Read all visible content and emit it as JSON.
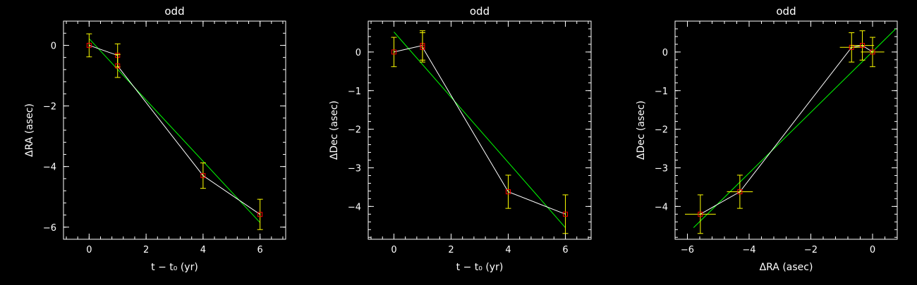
{
  "colors": {
    "background": "#000000",
    "axes": "#ffffff",
    "data_line": "#ffffff",
    "fit_line": "#00ff00",
    "error_bars": "#ffff00",
    "markers": "#ff0000"
  },
  "chart_data": [
    {
      "type": "scatter",
      "title": "odd",
      "xlabel": "t − t₀ (yr)",
      "ylabel": "ΔRA (asec)",
      "xlim": [
        -0.9,
        6.9
      ],
      "ylim": [
        -6.4,
        0.8
      ],
      "xticks": [
        0,
        2,
        4,
        6
      ],
      "yticks": [
        -6,
        -4,
        -2,
        0
      ],
      "xtick_labels": [
        "0",
        "2",
        "4",
        "6"
      ],
      "ytick_labels": [
        "−6",
        "−4",
        "−2",
        "0"
      ],
      "points": [
        {
          "x": 0,
          "y": 0.0,
          "yerr": 0.38
        },
        {
          "x": 1,
          "y": -0.33,
          "yerr": 0.38
        },
        {
          "x": 1,
          "y": -0.68,
          "yerr": 0.38
        },
        {
          "x": 4,
          "y": -4.3,
          "yerr": 0.42
        },
        {
          "x": 6,
          "y": -5.58,
          "yerr": 0.5
        }
      ],
      "fit": [
        [
          0,
          0.22
        ],
        [
          6,
          -5.85
        ]
      ]
    },
    {
      "type": "scatter",
      "title": "odd",
      "xlabel": "t − t₀ (yr)",
      "ylabel": "ΔDec (asec)",
      "xlim": [
        -0.9,
        6.9
      ],
      "ylim": [
        -4.85,
        0.8
      ],
      "xticks": [
        0,
        2,
        4,
        6
      ],
      "yticks": [
        -4,
        -3,
        -2,
        -1,
        0
      ],
      "xtick_labels": [
        "0",
        "2",
        "4",
        "6"
      ],
      "ytick_labels": [
        "−4",
        "−3",
        "−2",
        "−1",
        "0"
      ],
      "points": [
        {
          "x": 0,
          "y": 0.0,
          "yerr": 0.38
        },
        {
          "x": 1,
          "y": 0.17,
          "yerr": 0.38
        },
        {
          "x": 1,
          "y": 0.12,
          "yerr": 0.38
        },
        {
          "x": 4,
          "y": -3.62,
          "yerr": 0.43
        },
        {
          "x": 6,
          "y": -4.2,
          "yerr": 0.5
        }
      ],
      "fit": [
        [
          0,
          0.52
        ],
        [
          6,
          -4.55
        ]
      ]
    },
    {
      "type": "scatter",
      "title": "odd",
      "xlabel": "ΔRA (asec)",
      "ylabel": "ΔDec (asec)",
      "xlim": [
        -6.4,
        0.8
      ],
      "ylim": [
        -4.85,
        0.8
      ],
      "xticks": [
        -6,
        -4,
        -2,
        0
      ],
      "yticks": [
        -4,
        -3,
        -2,
        -1,
        0
      ],
      "xtick_labels": [
        "−6",
        "−4",
        "−2",
        "0"
      ],
      "ytick_labels": [
        "−4",
        "−3",
        "−2",
        "−1",
        "0"
      ],
      "points": [
        {
          "x": -5.58,
          "y": -4.2,
          "xerr": 0.5,
          "yerr": 0.5
        },
        {
          "x": -4.3,
          "y": -3.62,
          "xerr": 0.42,
          "yerr": 0.43
        },
        {
          "x": -0.68,
          "y": 0.12,
          "xerr": 0.38,
          "yerr": 0.38
        },
        {
          "x": -0.33,
          "y": 0.17,
          "xerr": 0.38,
          "yerr": 0.38
        },
        {
          "x": 0.0,
          "y": 0.0,
          "xerr": 0.38,
          "yerr": 0.38
        }
      ],
      "fit": [
        [
          -5.8,
          -4.55
        ],
        [
          0.75,
          0.6
        ]
      ]
    }
  ]
}
